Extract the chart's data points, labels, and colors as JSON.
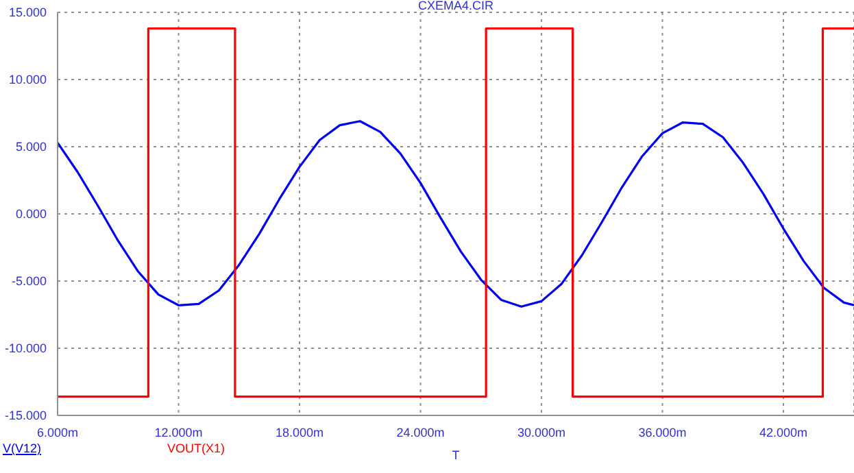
{
  "chart_data": {
    "type": "line",
    "title": "CXEMA4.CIR",
    "xlabel": "T",
    "xlim": [
      6,
      45.5
    ],
    "xticks": [
      {
        "value": 6,
        "label": "6.000m"
      },
      {
        "value": 12,
        "label": "12.000m"
      },
      {
        "value": 18,
        "label": "18.000m"
      },
      {
        "value": 24,
        "label": "24.000m"
      },
      {
        "value": 30,
        "label": "30.000m"
      },
      {
        "value": 36,
        "label": "36.000m"
      },
      {
        "value": 42,
        "label": "42.000m"
      }
    ],
    "ylim": [
      -15,
      15
    ],
    "yticks": [
      {
        "value": 15,
        "label": "15.000"
      },
      {
        "value": 10,
        "label": "10.000"
      },
      {
        "value": 5,
        "label": "5.000"
      },
      {
        "value": 0,
        "label": "0.000"
      },
      {
        "value": -5,
        "label": "-5.000"
      },
      {
        "value": -10,
        "label": "-10.000"
      },
      {
        "value": -15,
        "label": "-15.000"
      }
    ],
    "grid": true,
    "legend": "bottom left",
    "line_style": "solid",
    "marker": "none",
    "series": [
      {
        "name": "V(V12)",
        "color": "#0000ee",
        "x": [
          6,
          7,
          8,
          9,
          10,
          11,
          12,
          13,
          14,
          15,
          16,
          17,
          18,
          19,
          20,
          21,
          22,
          23,
          24,
          25,
          26,
          27,
          28,
          29,
          30,
          31,
          32,
          33,
          34,
          35,
          36,
          37,
          38,
          39,
          40,
          41,
          42,
          43,
          44,
          45,
          45.5
        ],
        "values": [
          5.3,
          3.1,
          0.6,
          -2.0,
          -4.3,
          -6.0,
          -6.8,
          -6.7,
          -5.7,
          -3.8,
          -1.5,
          1.1,
          3.5,
          5.5,
          6.6,
          6.9,
          6.1,
          4.5,
          2.3,
          -0.3,
          -2.8,
          -4.9,
          -6.4,
          -6.9,
          -6.5,
          -5.2,
          -3.1,
          -0.6,
          2.0,
          4.3,
          6.0,
          6.8,
          6.7,
          5.7,
          3.8,
          1.5,
          -1.1,
          -3.5,
          -5.5,
          -6.6,
          -6.8
        ]
      },
      {
        "name": "VOUT(X1)",
        "color": "#ff0000",
        "x": [
          6,
          10.5,
          10.5,
          14.8,
          14.8,
          27.25,
          27.25,
          31.55,
          31.55,
          43.95,
          43.95,
          45.5
        ],
        "values": [
          -13.6,
          -13.6,
          13.8,
          13.8,
          -13.6,
          -13.6,
          13.8,
          13.8,
          -13.6,
          -13.6,
          13.8,
          13.8
        ]
      }
    ]
  }
}
